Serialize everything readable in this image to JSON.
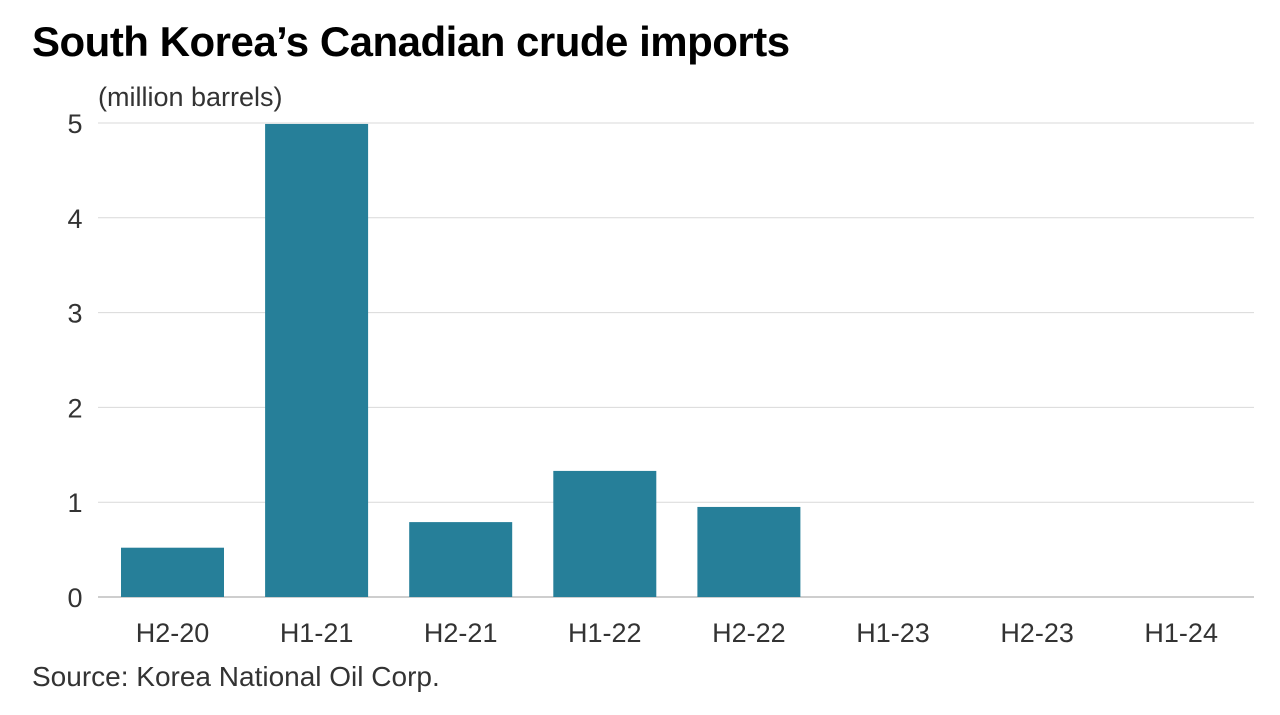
{
  "chart_data": {
    "type": "bar",
    "title": "South Korea’s Canadian crude imports",
    "ylabel": "(million barrels)",
    "xlabel": "",
    "categories": [
      "H2-20",
      "H1-21",
      "H2-21",
      "H1-22",
      "H2-22",
      "H1-23",
      "H2-23",
      "H1-24"
    ],
    "values": [
      0.52,
      4.99,
      0.79,
      1.33,
      0.95,
      0,
      0,
      0
    ],
    "ylim": [
      0,
      5
    ],
    "yticks": [
      0,
      1,
      2,
      3,
      4,
      5
    ],
    "grid": true,
    "bar_color": "#267f99",
    "source": "Source: Korea National Oil Corp."
  }
}
